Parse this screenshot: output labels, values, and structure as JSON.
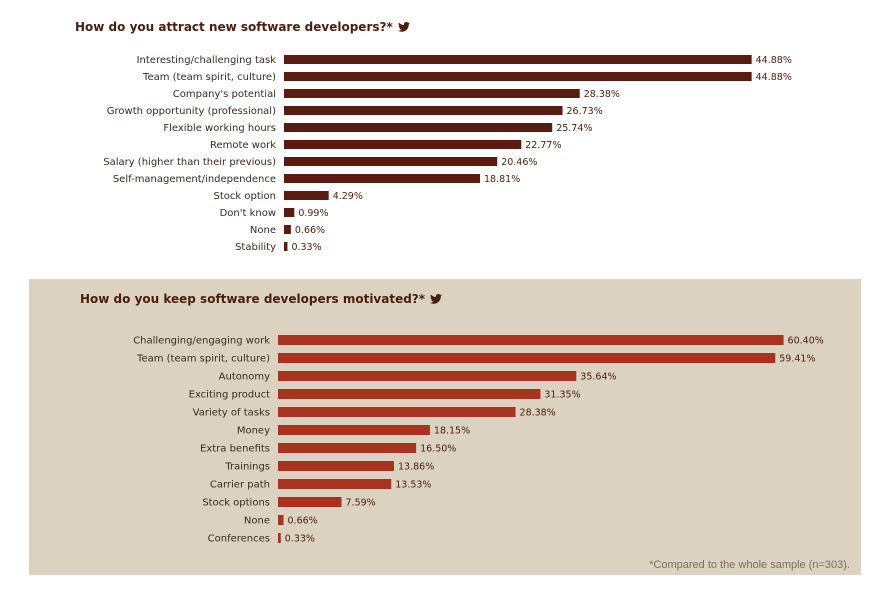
{
  "chart_data": [
    {
      "type": "bar",
      "orientation": "horizontal",
      "title": "How do you attract new software developers?*",
      "title_icon": "twitter-bird-icon",
      "bar_color": "#5a1c10",
      "categories": [
        "Interesting/challenging task",
        "Team (team spirit, culture)",
        "Company's potential",
        "Growth opportunity (professional)",
        "Flexible working hours",
        "Remote work",
        "Salary (higher than their previous)",
        "Self-management/independence",
        "Stock option",
        "Don't know",
        "None",
        "Stability"
      ],
      "values": [
        44.88,
        44.88,
        28.38,
        26.73,
        25.74,
        22.77,
        20.46,
        18.81,
        4.29,
        0.99,
        0.66,
        0.33
      ],
      "value_labels": [
        "44.88%",
        "44.88%",
        "28.38%",
        "26.73%",
        "25.74%",
        "22.77%",
        "20.46%",
        "18.81%",
        "4.29%",
        "0.99%",
        "0.66%",
        "0.33%"
      ]
    },
    {
      "type": "bar",
      "orientation": "horizontal",
      "title": "How do you keep software developers motivated?*",
      "title_icon": "twitter-bird-icon",
      "bar_color": "#a8331f",
      "categories": [
        "Challenging/engaging work",
        "Team (team spirit, culture)",
        "Autonomy",
        "Exciting product",
        "Variety of tasks",
        "Money",
        "Extra benefits",
        "Trainings",
        "Carrier path",
        "Stock options",
        "None",
        "Conferences"
      ],
      "values": [
        60.4,
        59.41,
        35.64,
        31.35,
        28.38,
        18.15,
        16.5,
        13.86,
        13.53,
        7.59,
        0.66,
        0.33
      ],
      "value_labels": [
        "60.40%",
        "59.41%",
        "35.64%",
        "31.35%",
        "28.38%",
        "18.15%",
        "16.50%",
        "13.86%",
        "13.53%",
        "7.59%",
        "0.66%",
        "0.33%"
      ]
    }
  ],
  "footnote": "*Compared to the whole sample (n=303)."
}
